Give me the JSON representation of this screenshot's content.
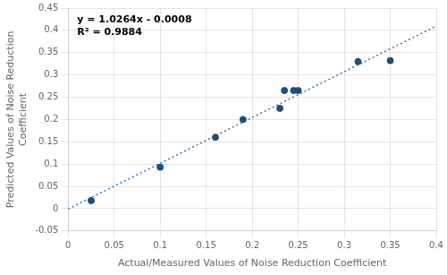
{
  "chart_data": {
    "type": "scatter",
    "xlabel": "Actual/Measured Values of Noise Reduction Coefficient",
    "ylabel": "Predicted Values of Noise Reduction\nCoefficient",
    "annotations": [
      "y = 1.0264x - 0.0008",
      "R² = 0.9884"
    ],
    "series": [
      {
        "type": "scatter",
        "color": "#1F4E79",
        "marker": "circle",
        "x": [
          0.025,
          0.1,
          0.16,
          0.19,
          0.23,
          0.235,
          0.245,
          0.25,
          0.315,
          0.35
        ],
        "values": [
          0.018,
          0.093,
          0.16,
          0.2,
          0.225,
          0.265,
          0.265,
          0.265,
          0.33,
          0.332
        ]
      },
      {
        "type": "line",
        "color": "#2E75B6",
        "line_style": "dotted",
        "x": [
          0,
          0.4
        ],
        "values": [
          -0.0008,
          0.40976
        ]
      }
    ],
    "xlim": [
      0,
      0.4
    ],
    "ylim": [
      -0.05,
      0.45
    ],
    "xticks": [
      0,
      0.05,
      0.1,
      0.15,
      0.2,
      0.25,
      0.3,
      0.35,
      0.4
    ],
    "yticks": [
      -0.05,
      0,
      0.05,
      0.1,
      0.15,
      0.2,
      0.25,
      0.3,
      0.35,
      0.4,
      0.45
    ],
    "grid": true
  }
}
